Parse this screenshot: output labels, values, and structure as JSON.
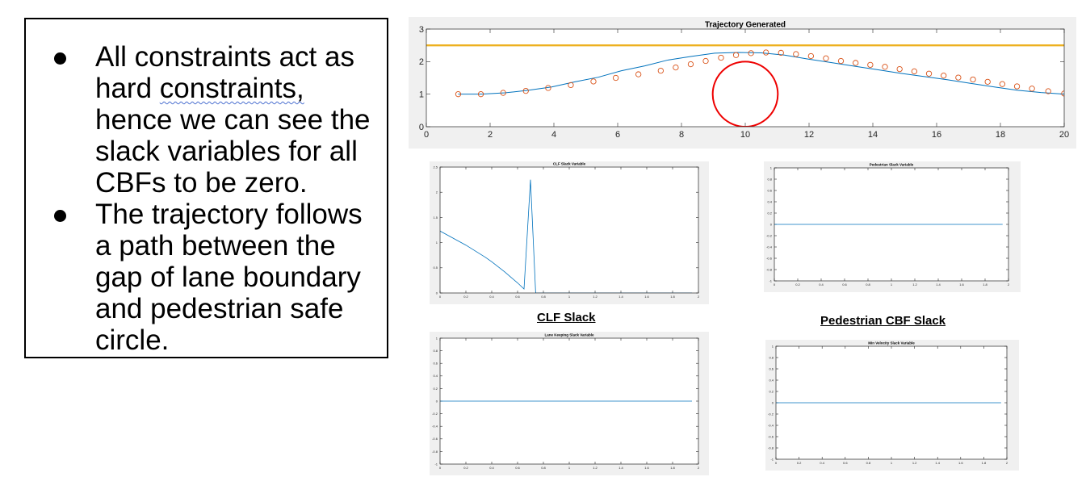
{
  "slide": {
    "bullets": [
      {
        "parts": [
          {
            "text": "All constraints act as hard ",
            "squiggle": false
          },
          {
            "text": "constraints,",
            "squiggle": true
          },
          {
            "text": " hence we can see the slack variables for all CBFs to be zero.",
            "squiggle": false
          }
        ]
      },
      {
        "parts": [
          {
            "text": "The trajectory follows a path between the gap of lane boundary and pedestrian safe circle.",
            "squiggle": false
          }
        ]
      }
    ]
  },
  "captions": {
    "clf": "CLF Slack",
    "pedestrian": "Pedestrian CBF Slack"
  },
  "chart_data": [
    {
      "type": "line",
      "title": "Trajectory Generated",
      "xlim": [
        0,
        20
      ],
      "ylim": [
        0,
        3
      ],
      "xticks": [
        0,
        2,
        4,
        6,
        8,
        10,
        12,
        14,
        16,
        18,
        20
      ],
      "yticks": [
        0,
        1,
        2,
        3
      ],
      "grid": false,
      "series": [
        {
          "color": "#0072bd",
          "marker": "none",
          "x": [
            1.0,
            1.73,
            2.46,
            3.19,
            3.93,
            4.66,
            5.39,
            6.12,
            6.85,
            7.58,
            8.31,
            9.04,
            9.77,
            10.5,
            11.23,
            11.96,
            12.69,
            13.42,
            14.15,
            14.88,
            15.62,
            16.35,
            17.08,
            17.81,
            18.54,
            19.27,
            20.0
          ],
          "y": [
            1.0,
            1.0,
            1.04,
            1.12,
            1.22,
            1.38,
            1.52,
            1.72,
            1.87,
            2.05,
            2.16,
            2.26,
            2.28,
            2.27,
            2.2,
            2.08,
            1.97,
            1.86,
            1.75,
            1.64,
            1.54,
            1.44,
            1.33,
            1.22,
            1.12,
            1.05,
            1.0
          ]
        },
        {
          "color": "#d95319",
          "marker": "o",
          "line": "none",
          "x": [
            1.0,
            1.71,
            2.41,
            3.12,
            3.82,
            4.53,
            5.24,
            5.94,
            6.65,
            7.35,
            7.82,
            8.29,
            8.76,
            9.24,
            9.71,
            10.18,
            10.65,
            11.12,
            11.59,
            12.06,
            12.53,
            13.0,
            13.46,
            13.92,
            14.38,
            14.84,
            15.3,
            15.76,
            16.22,
            16.68,
            17.14,
            17.6,
            18.06,
            18.52,
            18.99,
            19.5,
            20.0
          ],
          "y": [
            1.0,
            1.0,
            1.04,
            1.1,
            1.19,
            1.28,
            1.39,
            1.5,
            1.61,
            1.72,
            1.82,
            1.92,
            2.02,
            2.12,
            2.2,
            2.26,
            2.28,
            2.27,
            2.23,
            2.17,
            2.1,
            2.02,
            1.96,
            1.9,
            1.84,
            1.77,
            1.7,
            1.63,
            1.57,
            1.51,
            1.45,
            1.38,
            1.31,
            1.24,
            1.17,
            1.09,
            1.02
          ]
        },
        {
          "color": "#edb120",
          "marker": "none",
          "x": [
            0,
            20
          ],
          "y": [
            2.5,
            2.5
          ]
        }
      ],
      "circles": [
        {
          "cx": 10,
          "cy": 1,
          "r": 1,
          "color": "#ee0000"
        }
      ]
    },
    {
      "type": "line",
      "title": "CLF Slack Variable",
      "xlim": [
        0,
        2
      ],
      "ylim": [
        0,
        2.5
      ],
      "xticks": [
        "0",
        "0.2",
        "0.4",
        "0.6",
        "0.8",
        "1",
        "1.2",
        "1.4",
        "1.6",
        "1.8",
        "2"
      ],
      "yticks": [
        "0",
        "0.5",
        "1",
        "1.5",
        "2",
        "2.5"
      ],
      "series": [
        {
          "color": "#0072bd",
          "x": [
            0,
            0.05,
            0.1,
            0.15,
            0.2,
            0.25,
            0.3,
            0.35,
            0.4,
            0.45,
            0.5,
            0.55,
            0.6,
            0.65,
            0.7,
            0.74,
            0.78,
            1.95
          ],
          "y": [
            1.23,
            1.16,
            1.09,
            1.02,
            0.95,
            0.87,
            0.79,
            0.71,
            0.62,
            0.52,
            0.42,
            0.31,
            0.2,
            0.08,
            2.25,
            0.0,
            0.0,
            0.0
          ]
        }
      ]
    },
    {
      "type": "line",
      "title": "Pedestrian Slack Variable",
      "xlim": [
        0,
        2
      ],
      "ylim": [
        -1,
        1
      ],
      "xticks": [
        "0",
        "0.2",
        "0.4",
        "0.6",
        "0.8",
        "1",
        "1.2",
        "1.4",
        "1.6",
        "1.8",
        "2"
      ],
      "yticks": [
        "-1",
        "-0.8",
        "-0.6",
        "-0.4",
        "-0.2",
        "0",
        "0.2",
        "0.4",
        "0.6",
        "0.8",
        "1"
      ],
      "series": [
        {
          "color": "#0072bd",
          "x": [
            0,
            1.95
          ],
          "y": [
            0,
            0
          ]
        }
      ]
    },
    {
      "type": "line",
      "title": "Lane Keeping Slack Variable",
      "xlim": [
        0,
        2
      ],
      "ylim": [
        -1,
        1
      ],
      "xticks": [
        "0",
        "0.2",
        "0.4",
        "0.6",
        "0.8",
        "1",
        "1.2",
        "1.4",
        "1.6",
        "1.8",
        "2"
      ],
      "yticks": [
        "-1",
        "-0.8",
        "-0.6",
        "-0.4",
        "-0.2",
        "0",
        "0.2",
        "0.4",
        "0.6",
        "0.8",
        "1"
      ],
      "series": [
        {
          "color": "#0072bd",
          "x": [
            0,
            1.95
          ],
          "y": [
            0,
            0
          ]
        }
      ]
    },
    {
      "type": "line",
      "title": "Min Velocity Slack Variable",
      "xlim": [
        0,
        2
      ],
      "ylim": [
        -1,
        1
      ],
      "xticks": [
        "0",
        "0.2",
        "0.4",
        "0.6",
        "0.8",
        "1",
        "1.2",
        "1.4",
        "1.6",
        "1.8",
        "2"
      ],
      "yticks": [
        "-1",
        "-0.8",
        "-0.6",
        "-0.4",
        "-0.2",
        "0",
        "0.2",
        "0.4",
        "0.6",
        "0.8",
        "1"
      ],
      "series": [
        {
          "color": "#0072bd",
          "x": [
            0,
            1.95
          ],
          "y": [
            0,
            0
          ]
        }
      ]
    }
  ]
}
